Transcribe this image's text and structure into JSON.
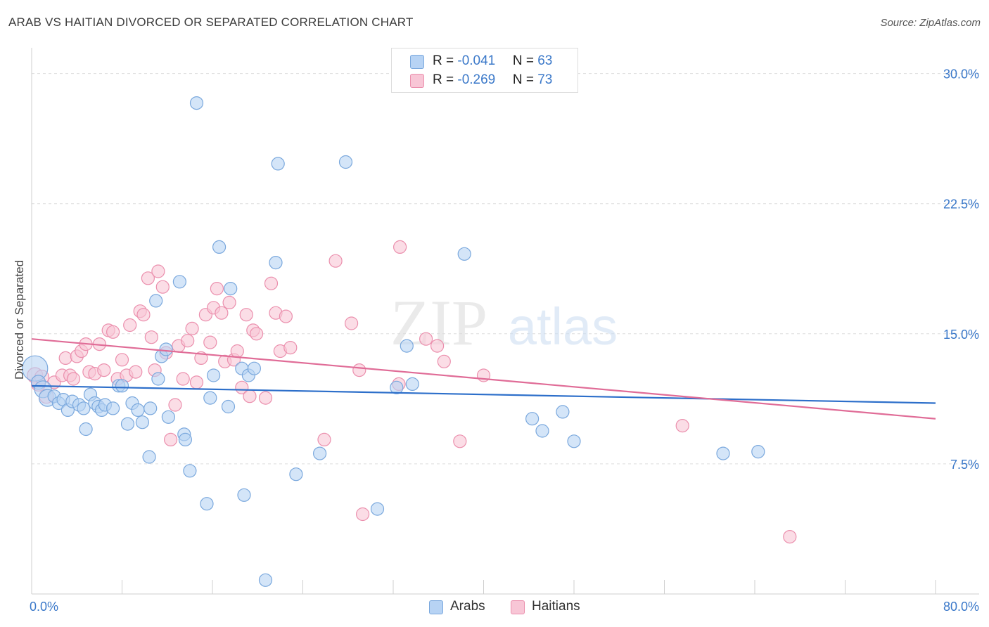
{
  "title": "ARAB VS HAITIAN DIVORCED OR SEPARATED CORRELATION CHART",
  "source": "Source: ZipAtlas.com",
  "watermark": {
    "zip": "ZIP",
    "atlas": "atlas"
  },
  "colors": {
    "arab_fill": "#b7d3f4",
    "arab_stroke": "#7aa8dd",
    "arab_line": "#2d6fca",
    "haitian_fill": "#f8c6d6",
    "haitian_stroke": "#eb8fad",
    "haitian_line": "#e06c97",
    "tick_label": "#3a78c9",
    "grid": "#dddddd"
  },
  "legend_top": [
    {
      "r_label": "R = ",
      "r_value": "-0.041",
      "n_label": "N = ",
      "n_value": "63"
    },
    {
      "r_label": "R = ",
      "r_value": "-0.269",
      "n_label": "N = ",
      "n_value": "73"
    }
  ],
  "legend_bottom": [
    "Arabs",
    "Haitians"
  ],
  "chart_data": {
    "type": "scatter",
    "title": "ARAB VS HAITIAN DIVORCED OR SEPARATED CORRELATION CHART",
    "xlabel": "",
    "ylabel": "Divorced or Separated",
    "xlim": [
      0,
      80
    ],
    "ylim": [
      0,
      31.2
    ],
    "x_tick_labels": [
      "0.0%",
      "80.0%"
    ],
    "y_ticks": [
      7.5,
      15.0,
      22.5,
      30.0
    ],
    "y_tick_labels": [
      "7.5%",
      "15.0%",
      "22.5%",
      "30.0%"
    ],
    "grid": "horizontal dashed",
    "legend_placement": "top-center and bottom",
    "series": [
      {
        "name": "Arabs",
        "R": -0.041,
        "N": 63,
        "trend": {
          "x": [
            0,
            80
          ],
          "y": [
            12.0,
            11.0
          ]
        },
        "points": [
          [
            0.3,
            13.0,
            18
          ],
          [
            0.6,
            12.2,
            10
          ],
          [
            1.0,
            11.8,
            12
          ],
          [
            1.4,
            11.3,
            12
          ],
          [
            2.0,
            11.4,
            9
          ],
          [
            2.4,
            11.0,
            9
          ],
          [
            2.8,
            11.2,
            9
          ],
          [
            3.2,
            10.6,
            9
          ],
          [
            3.6,
            11.1,
            9
          ],
          [
            4.2,
            10.9,
            9
          ],
          [
            4.6,
            10.7,
            9
          ],
          [
            4.8,
            9.5,
            9
          ],
          [
            5.2,
            11.5,
            9
          ],
          [
            5.6,
            11.0,
            9
          ],
          [
            5.9,
            10.8,
            9
          ],
          [
            6.2,
            10.6,
            9
          ],
          [
            6.5,
            10.9,
            9
          ],
          [
            7.2,
            10.7,
            9
          ],
          [
            7.7,
            12.0,
            9
          ],
          [
            8.0,
            12.0,
            9
          ],
          [
            8.5,
            9.8,
            9
          ],
          [
            8.9,
            11.0,
            9
          ],
          [
            9.4,
            10.6,
            9
          ],
          [
            9.8,
            9.9,
            9
          ],
          [
            10.4,
            7.9,
            9
          ],
          [
            10.5,
            10.7,
            9
          ],
          [
            11.0,
            16.9,
            9
          ],
          [
            11.2,
            12.4,
            9
          ],
          [
            11.5,
            13.7,
            9
          ],
          [
            11.9,
            14.1,
            9
          ],
          [
            12.1,
            10.2,
            9
          ],
          [
            13.1,
            18.0,
            9
          ],
          [
            13.5,
            9.2,
            9
          ],
          [
            13.6,
            8.9,
            9
          ],
          [
            14.0,
            7.1,
            9
          ],
          [
            14.6,
            28.3,
            9
          ],
          [
            15.5,
            5.2,
            9
          ],
          [
            15.8,
            11.3,
            9
          ],
          [
            16.1,
            12.6,
            9
          ],
          [
            16.6,
            20.0,
            9
          ],
          [
            17.4,
            10.8,
            9
          ],
          [
            17.6,
            17.6,
            9
          ],
          [
            18.6,
            13.0,
            9
          ],
          [
            18.8,
            5.7,
            9
          ],
          [
            19.2,
            12.6,
            9
          ],
          [
            20.7,
            0.8,
            9
          ],
          [
            21.6,
            19.1,
            9
          ],
          [
            21.8,
            24.8,
            9
          ],
          [
            23.4,
            6.9,
            9
          ],
          [
            25.5,
            8.1,
            9
          ],
          [
            27.8,
            24.9,
            9
          ],
          [
            30.6,
            4.9,
            9
          ],
          [
            32.3,
            11.9,
            9
          ],
          [
            33.2,
            14.3,
            9
          ],
          [
            33.7,
            12.1,
            9
          ],
          [
            38.3,
            19.6,
            9
          ],
          [
            44.3,
            10.1,
            9
          ],
          [
            45.2,
            9.4,
            9
          ],
          [
            47.0,
            10.5,
            9
          ],
          [
            48.0,
            8.8,
            9
          ],
          [
            61.2,
            8.1,
            9
          ],
          [
            64.3,
            8.2,
            9
          ],
          [
            19.7,
            13.0,
            9
          ]
        ]
      },
      {
        "name": "Haitians",
        "R": -0.269,
        "N": 73,
        "trend": {
          "x": [
            0,
            80
          ],
          "y": [
            14.7,
            10.1
          ]
        },
        "points": [
          [
            0.3,
            12.6,
            11
          ],
          [
            0.6,
            12.1,
            10
          ],
          [
            0.9,
            12.5,
            10
          ],
          [
            1.3,
            11.4,
            10
          ],
          [
            2.0,
            12.2,
            9
          ],
          [
            2.7,
            12.6,
            9
          ],
          [
            3.0,
            13.6,
            9
          ],
          [
            3.4,
            12.6,
            9
          ],
          [
            3.7,
            12.4,
            9
          ],
          [
            4.0,
            13.7,
            9
          ],
          [
            4.4,
            14.0,
            9
          ],
          [
            4.8,
            14.4,
            9
          ],
          [
            5.1,
            12.8,
            9
          ],
          [
            5.6,
            12.7,
            9
          ],
          [
            6.0,
            14.4,
            9
          ],
          [
            6.4,
            12.9,
            9
          ],
          [
            6.8,
            15.2,
            9
          ],
          [
            7.2,
            15.1,
            9
          ],
          [
            7.6,
            12.4,
            9
          ],
          [
            8.0,
            13.5,
            9
          ],
          [
            8.4,
            12.6,
            9
          ],
          [
            8.7,
            15.5,
            9
          ],
          [
            9.2,
            12.8,
            9
          ],
          [
            9.6,
            16.3,
            9
          ],
          [
            9.9,
            16.1,
            9
          ],
          [
            10.3,
            18.2,
            9
          ],
          [
            10.6,
            14.8,
            9
          ],
          [
            10.9,
            12.9,
            9
          ],
          [
            11.2,
            18.6,
            9
          ],
          [
            11.6,
            17.7,
            9
          ],
          [
            11.9,
            13.9,
            9
          ],
          [
            12.3,
            8.9,
            9
          ],
          [
            12.7,
            10.9,
            9
          ],
          [
            13.0,
            14.3,
            9
          ],
          [
            13.4,
            12.4,
            9
          ],
          [
            13.8,
            14.6,
            9
          ],
          [
            14.2,
            15.3,
            9
          ],
          [
            14.6,
            12.2,
            9
          ],
          [
            15.0,
            13.6,
            9
          ],
          [
            15.4,
            16.1,
            9
          ],
          [
            15.8,
            14.5,
            9
          ],
          [
            16.1,
            16.5,
            9
          ],
          [
            16.4,
            17.6,
            9
          ],
          [
            16.8,
            16.2,
            9
          ],
          [
            17.1,
            13.4,
            9
          ],
          [
            17.5,
            16.8,
            9
          ],
          [
            17.9,
            13.5,
            9
          ],
          [
            18.2,
            14.0,
            9
          ],
          [
            18.6,
            11.9,
            9
          ],
          [
            19.0,
            16.1,
            9
          ],
          [
            19.3,
            11.4,
            9
          ],
          [
            19.6,
            15.2,
            9
          ],
          [
            19.9,
            15.0,
            9
          ],
          [
            20.7,
            11.3,
            9
          ],
          [
            21.2,
            17.9,
            9
          ],
          [
            21.6,
            16.2,
            9
          ],
          [
            22.0,
            14.0,
            9
          ],
          [
            22.5,
            16.0,
            9
          ],
          [
            22.9,
            14.2,
            9
          ],
          [
            25.9,
            8.9,
            9
          ],
          [
            26.9,
            19.2,
            9
          ],
          [
            28.3,
            15.6,
            9
          ],
          [
            29.0,
            12.9,
            9
          ],
          [
            29.3,
            4.6,
            9
          ],
          [
            32.5,
            12.1,
            9
          ],
          [
            32.6,
            20.0,
            9
          ],
          [
            34.9,
            14.7,
            9
          ],
          [
            35.9,
            14.3,
            9
          ],
          [
            36.5,
            13.4,
            9
          ],
          [
            37.9,
            8.8,
            9
          ],
          [
            40.0,
            12.6,
            9
          ],
          [
            57.6,
            9.7,
            9
          ],
          [
            67.1,
            3.3,
            9
          ]
        ]
      }
    ]
  }
}
